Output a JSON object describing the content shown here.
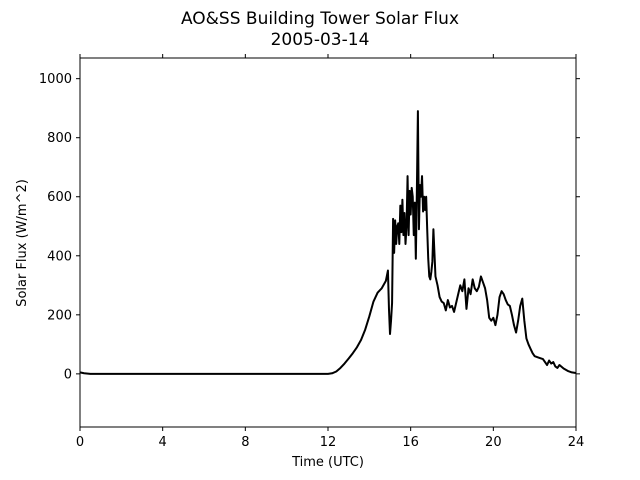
{
  "chart_data": {
    "type": "line",
    "title": "AO&SS Building Tower Solar Flux",
    "subtitle": "2005-03-14",
    "xlabel": "Time (UTC)",
    "ylabel": "Solar Flux (W/m^2)",
    "xlim": [
      0,
      24
    ],
    "ylim": [
      -180,
      1070
    ],
    "xticks": [
      "0",
      "4",
      "8",
      "12",
      "16",
      "20",
      "24"
    ],
    "yticks": [
      "0",
      "200",
      "400",
      "600",
      "800",
      "1000"
    ],
    "grid": false,
    "legend": "none",
    "series_color": "#000000",
    "series": [
      {
        "x": [
          0,
          0.2,
          0.5,
          1,
          4,
          8,
          11.5,
          12.0,
          12.2,
          12.4,
          12.6,
          12.8,
          13.0,
          13.2,
          13.4,
          13.6,
          13.8,
          14.0,
          14.2,
          14.4,
          14.6,
          14.8,
          14.9,
          14.95,
          15.0,
          15.05,
          15.1,
          15.15,
          15.2,
          15.25,
          15.3,
          15.35,
          15.4,
          15.45,
          15.5,
          15.55,
          15.6,
          15.65,
          15.7,
          15.75,
          15.8,
          15.85,
          15.9,
          15.95,
          16.0,
          16.05,
          16.1,
          16.15,
          16.2,
          16.25,
          16.3,
          16.35,
          16.4,
          16.45,
          16.5,
          16.55,
          16.6,
          16.65,
          16.7,
          16.75,
          16.8,
          16.85,
          16.9,
          16.95,
          17.0,
          17.05,
          17.1,
          17.2,
          17.3,
          17.4,
          17.5,
          17.6,
          17.7,
          17.8,
          17.9,
          18.0,
          18.1,
          18.2,
          18.3,
          18.4,
          18.5,
          18.6,
          18.7,
          18.8,
          18.9,
          19.0,
          19.1,
          19.2,
          19.3,
          19.4,
          19.5,
          19.6,
          19.7,
          19.8,
          19.9,
          20.0,
          20.1,
          20.2,
          20.3,
          20.4,
          20.5,
          20.6,
          20.7,
          20.8,
          20.9,
          21.0,
          21.1,
          21.2,
          21.3,
          21.4,
          21.5,
          21.6,
          21.7,
          21.8,
          21.9,
          22.0,
          22.2,
          22.4,
          22.6,
          22.7,
          22.8,
          22.9,
          23.0,
          23.1,
          23.2,
          23.4,
          23.6,
          23.8,
          24.0
        ],
        "y": [
          5,
          2,
          0,
          0,
          0,
          0,
          0,
          0,
          2,
          8,
          20,
          35,
          52,
          70,
          90,
          115,
          150,
          195,
          245,
          275,
          290,
          315,
          350,
          220,
          135,
          180,
          240,
          525,
          410,
          520,
          440,
          500,
          510,
          440,
          570,
          480,
          590,
          470,
          545,
          440,
          500,
          670,
          470,
          620,
          540,
          630,
          600,
          470,
          580,
          390,
          620,
          890,
          490,
          640,
          600,
          670,
          550,
          600,
          555,
          600,
          490,
          390,
          330,
          320,
          345,
          380,
          490,
          330,
          300,
          260,
          245,
          240,
          215,
          250,
          225,
          230,
          210,
          240,
          270,
          300,
          280,
          320,
          220,
          290,
          270,
          320,
          290,
          280,
          295,
          330,
          310,
          290,
          250,
          190,
          180,
          190,
          165,
          200,
          260,
          280,
          270,
          250,
          235,
          230,
          200,
          165,
          140,
          180,
          230,
          255,
          180,
          120,
          100,
          85,
          70,
          60,
          55,
          50,
          30,
          45,
          35,
          40,
          25,
          20,
          30,
          18,
          10,
          5,
          3
        ]
      }
    ]
  }
}
